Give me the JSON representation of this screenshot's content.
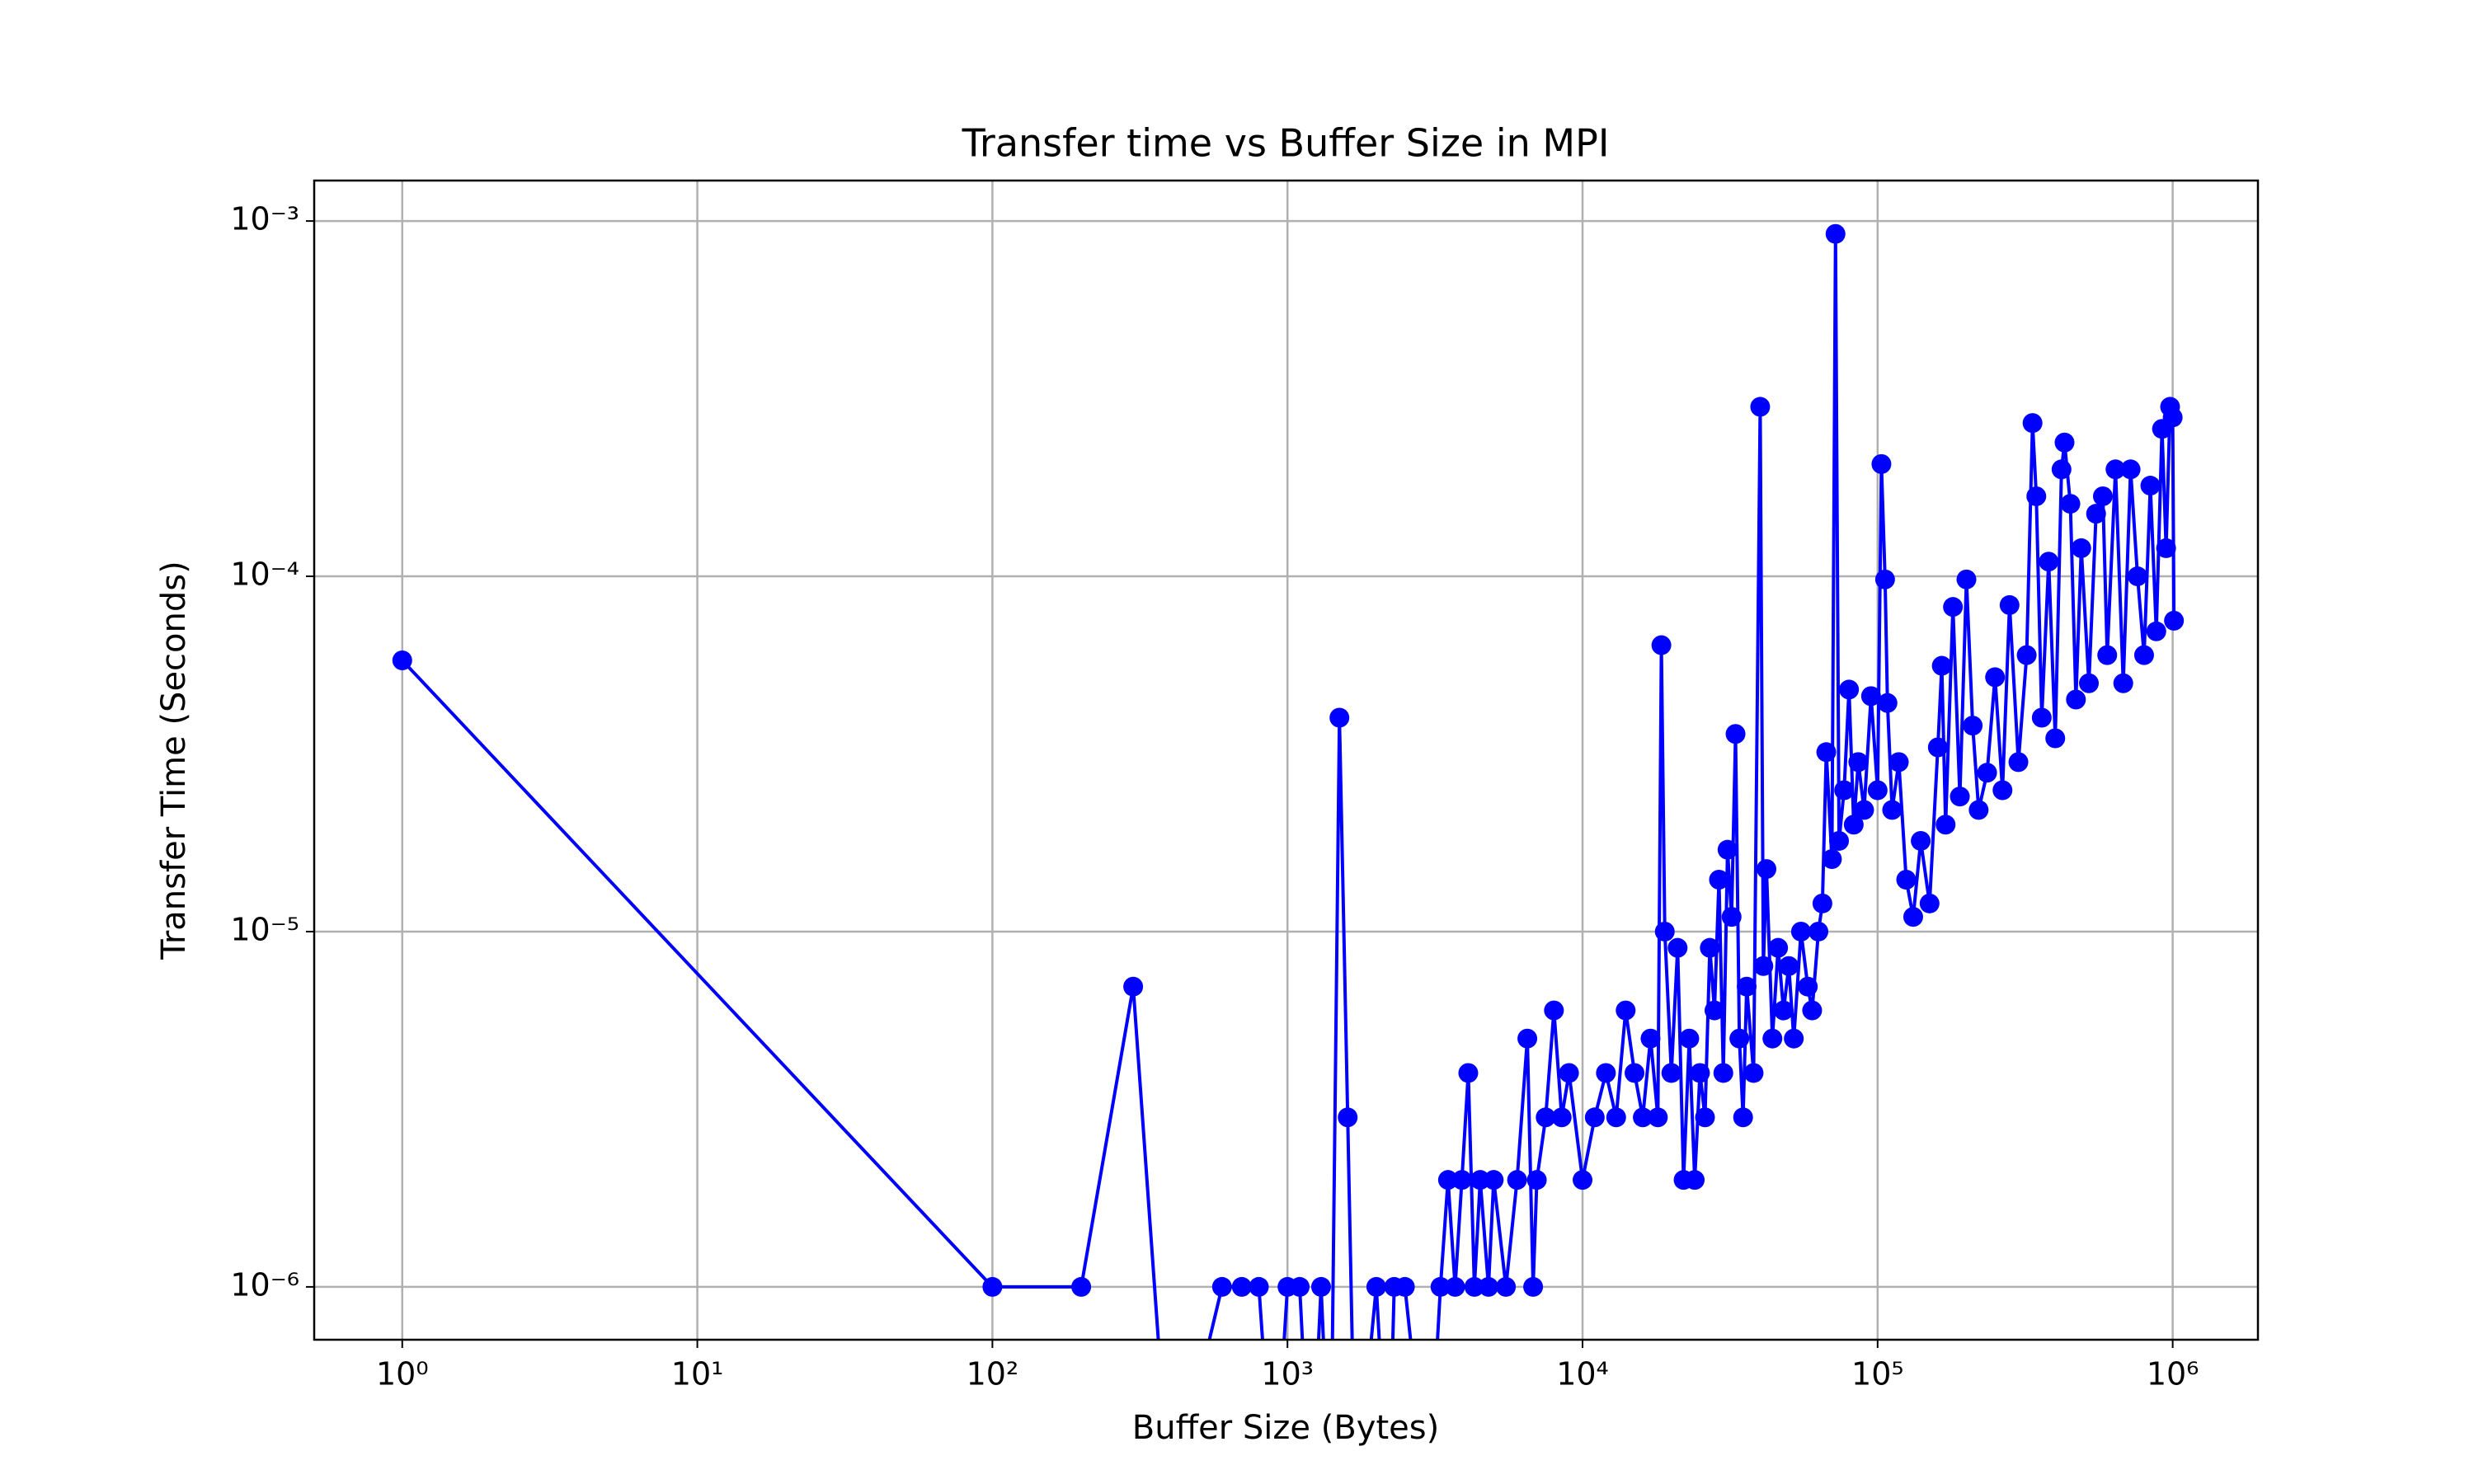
{
  "chart_data": {
    "type": "line",
    "title": "Transfer time vs Buffer Size in MPI",
    "x_label": "Buffer Size (Bytes)",
    "y_label": "Transfer Time (Seconds)",
    "x_scale": "log",
    "y_scale": "log",
    "grid": true,
    "xlim": [
      0.503,
      1945000
    ],
    "ylim": [
      7.1e-07,
      0.0013
    ],
    "xticks": [
      {
        "value": 1,
        "label": "10⁰"
      },
      {
        "value": 10,
        "label": "10¹"
      },
      {
        "value": 100,
        "label": "10²"
      },
      {
        "value": 1000,
        "label": "10³"
      },
      {
        "value": 10000,
        "label": "10⁴"
      },
      {
        "value": 100000,
        "label": "10⁵"
      },
      {
        "value": 1000000,
        "label": "10⁶"
      }
    ],
    "yticks": [
      {
        "value": 1e-06,
        "label": "10⁻⁶"
      },
      {
        "value": 1e-05,
        "label": "10⁻⁵"
      },
      {
        "value": 0.0001,
        "label": "10⁻⁴"
      },
      {
        "value": 0.001,
        "label": "10⁻³"
      }
    ],
    "series": [
      {
        "color": "#0000ff",
        "x": [
          1,
          100,
          200,
          300,
          400,
          600,
          700,
          800,
          900,
          1000,
          1100,
          1200,
          1300,
          1400,
          1500,
          1600,
          1700,
          2000,
          2200,
          2300,
          2500,
          3000,
          3300,
          3500,
          3700,
          3900,
          4100,
          4300,
          4500,
          4800,
          5000,
          5500,
          6000,
          6500,
          6800,
          7000,
          7500,
          8000,
          8500,
          9000,
          10000,
          11000,
          12000,
          13000,
          14000,
          15000,
          16000,
          17000,
          18000,
          18500,
          19000,
          20000,
          21000,
          22000,
          23000,
          24000,
          25000,
          26000,
          27000,
          28000,
          29000,
          30000,
          31000,
          32000,
          33000,
          34000,
          35000,
          36000,
          38000,
          40000,
          41000,
          42000,
          44000,
          46000,
          48000,
          50000,
          52000,
          55000,
          58000,
          60000,
          63000,
          65000,
          67000,
          70000,
          72000,
          74000,
          77000,
          80000,
          83000,
          86000,
          90000,
          95000,
          100000,
          103000,
          106000,
          108000,
          112000,
          118000,
          125000,
          132000,
          140000,
          150000,
          160000,
          165000,
          170000,
          180000,
          190000,
          200000,
          210000,
          220000,
          235000,
          250000,
          265000,
          280000,
          300000,
          320000,
          335000,
          345000,
          360000,
          380000,
          400000,
          420000,
          430000,
          450000,
          470000,
          490000,
          520000,
          550000,
          580000,
          600000,
          640000,
          680000,
          720000,
          760000,
          800000,
          840000,
          880000,
          920000,
          950000,
          980000,
          1000000,
          1010000
        ],
        "values": [
          5.8e-05,
          1e-06,
          1e-06,
          7e-06,
          0,
          1e-06,
          1e-06,
          1e-06,
          0,
          1e-06,
          1e-06,
          0,
          1e-06,
          0,
          4e-05,
          3e-06,
          0,
          1e-06,
          0,
          1e-06,
          1e-06,
          0,
          1e-06,
          2e-06,
          1e-06,
          2e-06,
          4e-06,
          1e-06,
          2e-06,
          1e-06,
          2e-06,
          1e-06,
          2e-06,
          5e-06,
          1e-06,
          2e-06,
          3e-06,
          6e-06,
          3e-06,
          4e-06,
          2e-06,
          3e-06,
          4e-06,
          3e-06,
          6e-06,
          4e-06,
          3e-06,
          5e-06,
          3e-06,
          6.4e-05,
          1e-05,
          4e-06,
          9e-06,
          2e-06,
          5e-06,
          2e-06,
          4e-06,
          3e-06,
          9e-06,
          6e-06,
          1.4e-05,
          4e-06,
          1.7e-05,
          1.1e-05,
          3.6e-05,
          5e-06,
          3e-06,
          7e-06,
          4e-06,
          0.0003,
          8e-06,
          1.5e-05,
          5e-06,
          9e-06,
          6e-06,
          8e-06,
          5e-06,
          1e-05,
          7e-06,
          6e-06,
          1e-05,
          1.2e-05,
          3.2e-05,
          1.6e-05,
          0.00092,
          1.8e-05,
          2.5e-05,
          4.8e-05,
          2e-05,
          3e-05,
          2.2e-05,
          4.6e-05,
          2.5e-05,
          0.000207,
          9.8e-05,
          4.4e-05,
          2.2e-05,
          3e-05,
          1.4e-05,
          1.1e-05,
          1.8e-05,
          1.2e-05,
          3.3e-05,
          5.6e-05,
          2e-05,
          8.2e-05,
          2.4e-05,
          9.8e-05,
          3.8e-05,
          2.2e-05,
          2.8e-05,
          5.2e-05,
          2.5e-05,
          8.3e-05,
          3e-05,
          6e-05,
          0.00027,
          0.000168,
          4e-05,
          0.00011,
          3.5e-05,
          0.0002,
          0.000238,
          0.00016,
          4.5e-05,
          0.00012,
          5e-05,
          0.00015,
          0.000168,
          6e-05,
          0.0002,
          5e-05,
          0.0002,
          0.0001,
          6e-05,
          0.00018,
          7e-05,
          0.00026,
          0.00012,
          0.0003,
          0.00028,
          7.5e-05
        ]
      }
    ]
  }
}
